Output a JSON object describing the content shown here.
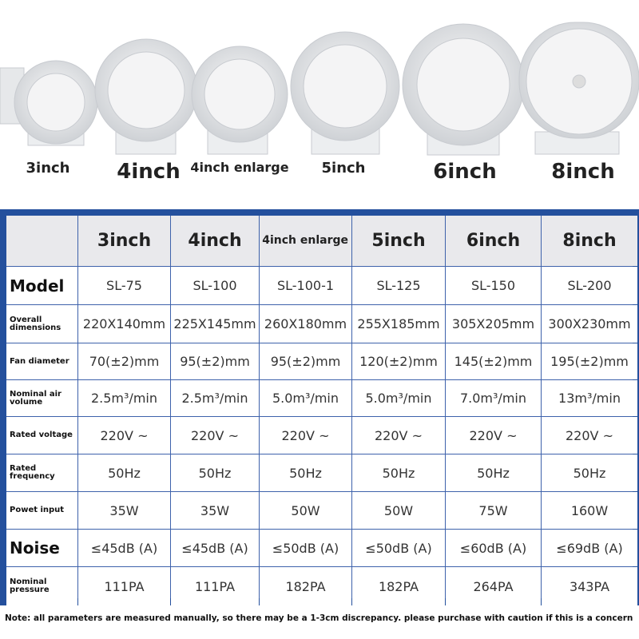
{
  "products": [
    "3inch",
    "4inch",
    "4inch enlarge",
    "5inch",
    "6inch",
    "8inch"
  ],
  "table": {
    "columns": [
      "3inch",
      "4inch",
      "4inch enlarge",
      "5inch",
      "6inch",
      "8inch"
    ],
    "rows": [
      {
        "label": "Model",
        "cells": [
          "SL-75",
          "SL-100",
          "SL-100-1",
          "SL-125",
          "SL-150",
          "SL-200"
        ]
      },
      {
        "label": "Overall dimensions",
        "cells": [
          "220X140mm",
          "225X145mm",
          "260X180mm",
          "255X185mm",
          "305X205mm",
          "300X230mm"
        ]
      },
      {
        "label": "Fan diameter",
        "cells": [
          "70(±2)mm",
          "95(±2)mm",
          "95(±2)mm",
          "120(±2)mm",
          "145(±2)mm",
          "195(±2)mm"
        ]
      },
      {
        "label": "Nominal air volume",
        "cells": [
          "2.5m³/min",
          "2.5m³/min",
          "5.0m³/min",
          "5.0m³/min",
          "7.0m³/min",
          "13m³/min"
        ]
      },
      {
        "label": "Rated voltage",
        "cells": [
          "220V ~",
          "220V ~",
          "220V ~",
          "220V ~",
          "220V ~",
          "220V ~"
        ]
      },
      {
        "label": "Rated frequency",
        "cells": [
          "50Hz",
          "50Hz",
          "50Hz",
          "50Hz",
          "50Hz",
          "50Hz"
        ]
      },
      {
        "label": "Powet input",
        "cells": [
          "35W",
          "35W",
          "50W",
          "50W",
          "75W",
          "160W"
        ]
      },
      {
        "label": "Noise",
        "cells": [
          "≤45dB (A)",
          "≤45dB (A)",
          "≤50dB (A)",
          "≤50dB (A)",
          "≤60dB (A)",
          "≤69dB (A)"
        ]
      },
      {
        "label": "Nominal pressure",
        "cells": [
          "111PA",
          "111PA",
          "182PA",
          "182PA",
          "264PA",
          "343PA"
        ]
      }
    ]
  },
  "note": "Note: all parameters are measured manually, so there may be a 1-3cm discrepancy. please purchase with caution if this is a concern"
}
